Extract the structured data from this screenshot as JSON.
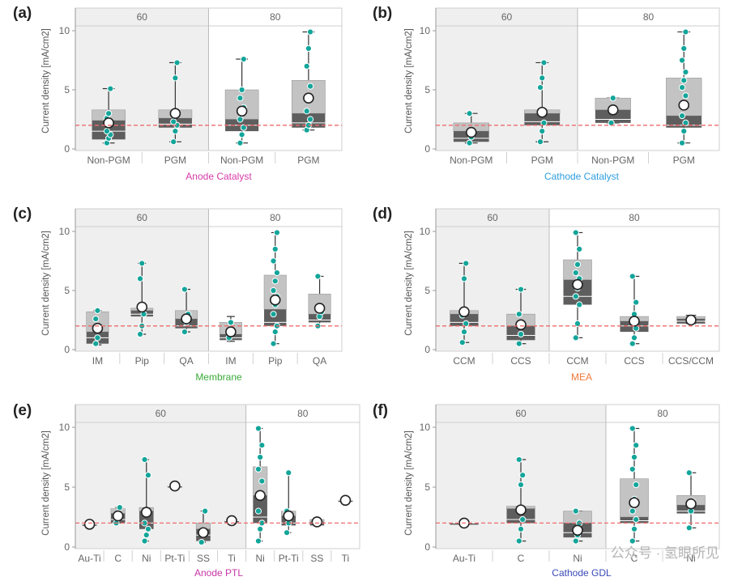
{
  "watermark": "公众号 · 氢眼所见",
  "colors": {
    "facet_bg": "#efefef",
    "iqr_light": "#c3c3c3",
    "iqr_dark": "#5e5e5e",
    "point": "#13a59a",
    "ref_line": "#ef6b6b",
    "axis_text": "#666666",
    "grid": "#dddddd"
  },
  "chart_data": [
    {
      "panel": "(a)",
      "type": "box",
      "ylabel": "Current density [mA/cm2]",
      "ylim": [
        0,
        10
      ],
      "yticks": [
        0,
        5,
        10
      ],
      "ref": 2,
      "xtitle": "Anode Catalyst",
      "xtitle_color": "#d83aa8",
      "facets": [
        {
          "label": "60",
          "shaded": true,
          "groups": [
            {
              "cat": "Non-PGM",
              "q1": 0.8,
              "med": 1.5,
              "q3": 2.4,
              "q3u": 3.3,
              "min": 0.5,
              "max": 5.1,
              "mean": 2.2,
              "points": [
                0.5,
                0.9,
                1.2,
                1.5,
                2.0,
                2.2,
                2.6,
                3.0,
                5.1
              ]
            },
            {
              "cat": "PGM",
              "q1": 1.8,
              "med": 2.1,
              "q3": 2.6,
              "q3u": 3.3,
              "min": 0.6,
              "max": 7.3,
              "mean": 3.0,
              "points": [
                0.6,
                1.5,
                2.0,
                2.3,
                6.0,
                7.3
              ]
            }
          ]
        },
        {
          "label": "80",
          "shaded": false,
          "groups": [
            {
              "cat": "Non-PGM",
              "q1": 1.5,
              "med": 2.0,
              "q3": 2.5,
              "q3u": 5.0,
              "min": 0.5,
              "max": 7.6,
              "mean": 3.2,
              "points": [
                0.5,
                1.2,
                1.8,
                2.5,
                3.0,
                3.5,
                4.3,
                5.0,
                7.6
              ]
            },
            {
              "cat": "PGM",
              "q1": 1.8,
              "med": 2.2,
              "q3": 3.0,
              "q3u": 5.8,
              "min": 1.6,
              "max": 9.9,
              "mean": 4.3,
              "points": [
                1.6,
                2.0,
                2.5,
                3.2,
                4.5,
                5.3,
                7.0,
                8.5,
                9.9
              ]
            }
          ]
        }
      ]
    },
    {
      "panel": "(b)",
      "type": "box",
      "ylabel": "Current density [mA/cm2]",
      "ylim": [
        0,
        10
      ],
      "yticks": [
        0,
        5,
        10
      ],
      "ref": 2,
      "xtitle": "Cathode Catalyst",
      "xtitle_color": "#2f9ee0",
      "facets": [
        {
          "label": "60",
          "shaded": true,
          "groups": [
            {
              "cat": "Non-PGM",
              "q1": 0.6,
              "med": 0.9,
              "q3": 1.5,
              "q3u": 2.2,
              "min": 0.5,
              "max": 3.0,
              "mean": 1.4,
              "points": [
                0.5,
                1.0,
                1.5,
                3.0
              ]
            },
            {
              "cat": "PGM",
              "q1": 2.0,
              "med": 2.3,
              "q3": 3.0,
              "q3u": 3.3,
              "min": 0.6,
              "max": 7.3,
              "mean": 3.1,
              "points": [
                0.6,
                1.5,
                2.2,
                5.2,
                6.0,
                7.3
              ]
            }
          ]
        },
        {
          "label": "80",
          "shaded": false,
          "groups": [
            {
              "cat": "Non-PGM",
              "q1": 2.2,
              "med": 2.5,
              "q3": 3.3,
              "q3u": 4.3,
              "min": 2.2,
              "max": 4.3,
              "mean": 3.3,
              "points": [
                2.2,
                4.3
              ]
            },
            {
              "cat": "PGM",
              "q1": 1.8,
              "med": 2.0,
              "q3": 2.8,
              "q3u": 6.0,
              "min": 0.5,
              "max": 9.9,
              "mean": 3.7,
              "points": [
                0.5,
                1.5,
                2.2,
                2.8,
                3.5,
                4.5,
                5.2,
                5.8,
                6.5,
                7.5,
                8.5,
                9.9
              ]
            }
          ]
        }
      ]
    },
    {
      "panel": "(c)",
      "type": "box",
      "ylabel": "Current density [mA/cm2]",
      "ylim": [
        0,
        10
      ],
      "yticks": [
        0,
        5,
        10
      ],
      "ref": 2,
      "xtitle": "Membrane",
      "xtitle_color": "#3aaa3a",
      "facets": [
        {
          "label": "60",
          "shaded": true,
          "groups": [
            {
              "cat": "IM",
              "q1": 0.5,
              "med": 1.0,
              "q3": 1.5,
              "q3u": 3.2,
              "min": 0.4,
              "max": 3.3,
              "mean": 1.8,
              "points": [
                0.5,
                1.0,
                1.8,
                2.6,
                3.3
              ]
            },
            {
              "cat": "Pip",
              "q1": 2.8,
              "med": 3.0,
              "q3": 3.3,
              "q3u": 3.5,
              "min": 1.3,
              "max": 7.3,
              "mean": 3.6,
              "points": [
                1.3,
                2.0,
                3.0,
                6.0,
                7.3
              ]
            },
            {
              "cat": "QA",
              "q1": 1.8,
              "med": 2.0,
              "q3": 2.6,
              "q3u": 3.3,
              "min": 1.5,
              "max": 5.1,
              "mean": 2.6,
              "points": [
                1.5,
                2.3,
                3.0,
                5.1
              ]
            }
          ]
        },
        {
          "label": "80",
          "shaded": false,
          "groups": [
            {
              "cat": "IM",
              "q1": 0.8,
              "med": 1.0,
              "q3": 1.3,
              "q3u": 2.3,
              "min": 0.7,
              "max": 2.8,
              "mean": 1.5,
              "points": [
                1.0,
                2.3
              ]
            },
            {
              "cat": "Pip",
              "q1": 2.0,
              "med": 2.3,
              "q3": 3.4,
              "q3u": 6.3,
              "min": 0.5,
              "max": 9.9,
              "mean": 4.2,
              "points": [
                0.5,
                1.5,
                2.0,
                3.0,
                3.8,
                4.5,
                5.0,
                5.8,
                6.5,
                7.5,
                8.5,
                9.9
              ]
            },
            {
              "cat": "QA",
              "q1": 2.3,
              "med": 2.5,
              "q3": 3.0,
              "q3u": 4.7,
              "min": 2.0,
              "max": 6.2,
              "mean": 3.5,
              "points": [
                2.0,
                2.8,
                3.2,
                6.2
              ]
            }
          ]
        }
      ]
    },
    {
      "panel": "(d)",
      "type": "box",
      "ylabel": "Current density [mA/cm2]",
      "ylim": [
        0,
        10
      ],
      "yticks": [
        0,
        5,
        10
      ],
      "ref": 2,
      "xtitle": "MEA",
      "xtitle_color": "#f07a3a",
      "facets": [
        {
          "label": "60",
          "shaded": true,
          "groups": [
            {
              "cat": "CCM",
              "q1": 2.0,
              "med": 2.3,
              "q3": 3.0,
              "q3u": 3.3,
              "min": 0.6,
              "max": 7.3,
              "mean": 3.2,
              "points": [
                0.6,
                1.5,
                2.2,
                2.9,
                6.0,
                7.3
              ]
            },
            {
              "cat": "CCS",
              "q1": 0.8,
              "med": 1.2,
              "q3": 2.0,
              "q3u": 3.0,
              "min": 0.5,
              "max": 5.1,
              "mean": 2.1,
              "points": [
                0.5,
                1.3,
                2.0,
                3.0,
                5.1
              ]
            }
          ]
        },
        {
          "label": "80",
          "shaded": false,
          "groups": [
            {
              "cat": "CCM",
              "q1": 3.8,
              "med": 4.5,
              "q3": 5.9,
              "q3u": 7.6,
              "min": 1.0,
              "max": 9.9,
              "mean": 5.5,
              "points": [
                1.0,
                2.2,
                3.8,
                4.5,
                5.2,
                6.0,
                6.5,
                7.2,
                8.5,
                9.9
              ]
            },
            {
              "cat": "CCS",
              "q1": 1.5,
              "med": 2.0,
              "q3": 2.4,
              "q3u": 2.8,
              "min": 0.5,
              "max": 6.2,
              "mean": 2.4,
              "points": [
                0.5,
                1.0,
                1.8,
                2.3,
                3.0,
                4.0,
                6.2
              ]
            },
            {
              "cat": "CCS/CCM",
              "q1": 2.2,
              "med": 2.4,
              "q3": 2.6,
              "q3u": 2.8,
              "min": 2.2,
              "max": 2.9,
              "mean": 2.5,
              "points": [
                2.5
              ]
            }
          ]
        }
      ]
    },
    {
      "panel": "(e)",
      "type": "box",
      "ylabel": "Current density [mA/cm2]",
      "ylim": [
        0,
        10
      ],
      "yticks": [
        0,
        5,
        10
      ],
      "ref": 2,
      "xtitle": "Anode PTL",
      "xtitle_color": "#c736a8",
      "facets": [
        {
          "label": "60",
          "shaded": true,
          "groups": [
            {
              "cat": "Au-Ti",
              "q1": 1.9,
              "med": 1.9,
              "q3": 1.9,
              "q3u": 1.9,
              "min": 1.9,
              "max": 1.9,
              "mean": 1.9,
              "points": []
            },
            {
              "cat": "C",
              "q1": 2.0,
              "med": 2.3,
              "q3": 2.8,
              "q3u": 3.2,
              "min": 2.0,
              "max": 3.3,
              "mean": 2.6,
              "points": [
                2.0,
                2.5,
                3.3
              ]
            },
            {
              "cat": "Ni",
              "q1": 1.5,
              "med": 2.0,
              "q3": 3.0,
              "q3u": 3.3,
              "min": 0.5,
              "max": 7.3,
              "mean": 2.9,
              "points": [
                0.5,
                1.0,
                1.5,
                2.0,
                3.0,
                6.0,
                7.3
              ]
            },
            {
              "cat": "Pt-Ti",
              "q1": 5.1,
              "med": 5.1,
              "q3": 5.1,
              "q3u": 5.1,
              "min": 5.1,
              "max": 5.1,
              "mean": 5.1,
              "points": []
            },
            {
              "cat": "SS",
              "q1": 0.5,
              "med": 1.0,
              "q3": 1.5,
              "q3u": 2.0,
              "min": 0.4,
              "max": 3.0,
              "mean": 1.2,
              "points": [
                0.4,
                1.0,
                3.0
              ]
            },
            {
              "cat": "Ti",
              "q1": 2.2,
              "med": 2.2,
              "q3": 2.2,
              "q3u": 2.2,
              "min": 2.2,
              "max": 2.2,
              "mean": 2.2,
              "points": []
            }
          ]
        },
        {
          "label": "80",
          "shaded": false,
          "groups": [
            {
              "cat": "Ni",
              "q1": 2.0,
              "med": 2.5,
              "q3": 4.3,
              "q3u": 6.7,
              "min": 0.5,
              "max": 9.9,
              "mean": 4.3,
              "points": [
                0.5,
                1.5,
                2.0,
                3.0,
                4.3,
                5.5,
                6.5,
                7.5,
                8.5,
                9.9
              ]
            },
            {
              "cat": "Pt-Ti",
              "q1": 1.8,
              "med": 2.0,
              "q3": 2.6,
              "q3u": 3.0,
              "min": 1.2,
              "max": 6.2,
              "mean": 2.6,
              "points": [
                1.2,
                2.0,
                2.5,
                3.0,
                6.2
              ]
            },
            {
              "cat": "SS",
              "q1": 1.8,
              "med": 2.0,
              "q3": 2.1,
              "q3u": 2.3,
              "min": 1.8,
              "max": 2.4,
              "mean": 2.1,
              "points": [
                2.0
              ]
            },
            {
              "cat": "Ti",
              "q1": 3.9,
              "med": 3.9,
              "q3": 3.9,
              "q3u": 3.9,
              "min": 3.9,
              "max": 3.9,
              "mean": 3.9,
              "points": []
            }
          ]
        }
      ]
    },
    {
      "panel": "(f)",
      "type": "box",
      "ylabel": "Current density [mA/cm2]",
      "ylim": [
        0,
        10
      ],
      "yticks": [
        0,
        5,
        10
      ],
      "ref": 2,
      "xtitle": "Cathode GDL",
      "xtitle_color": "#3a4ab8",
      "facets": [
        {
          "label": "60",
          "shaded": true,
          "groups": [
            {
              "cat": "Au-Ti",
              "q1": 2.0,
              "med": 2.0,
              "q3": 2.0,
              "q3u": 2.0,
              "min": 2.0,
              "max": 2.0,
              "mean": 2.0,
              "points": []
            },
            {
              "cat": "C",
              "q1": 2.0,
              "med": 2.3,
              "q3": 3.2,
              "q3u": 3.4,
              "min": 0.5,
              "max": 7.3,
              "mean": 3.1,
              "points": [
                0.5,
                1.5,
                2.3,
                3.0,
                5.2,
                6.0,
                7.3
              ]
            },
            {
              "cat": "Ni",
              "q1": 0.8,
              "med": 1.2,
              "q3": 2.0,
              "q3u": 3.0,
              "min": 0.5,
              "max": 3.0,
              "mean": 1.4,
              "points": [
                0.5,
                1.0,
                2.0,
                3.0
              ]
            }
          ]
        },
        {
          "label": "80",
          "shaded": false,
          "groups": [
            {
              "cat": "C",
              "q1": 2.0,
              "med": 2.2,
              "q3": 2.5,
              "q3u": 5.7,
              "min": 0.5,
              "max": 9.9,
              "mean": 3.7,
              "points": [
                0.5,
                1.5,
                2.3,
                3.0,
                4.0,
                5.2,
                6.5,
                7.5,
                8.5,
                9.9
              ]
            },
            {
              "cat": "Ni",
              "q1": 2.8,
              "med": 3.0,
              "q3": 3.5,
              "q3u": 4.3,
              "min": 1.6,
              "max": 6.2,
              "mean": 3.6,
              "points": [
                1.6,
                3.0,
                3.8,
                6.2
              ]
            }
          ]
        }
      ]
    }
  ]
}
